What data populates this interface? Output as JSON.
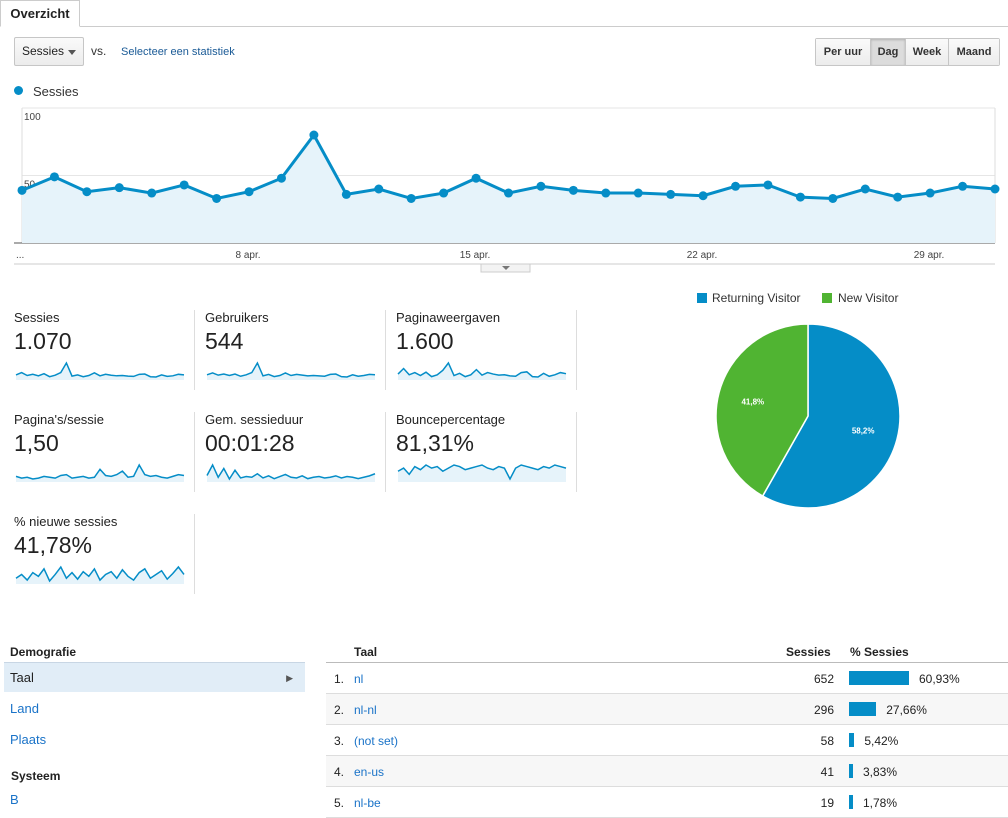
{
  "tab": {
    "label": "Overzicht"
  },
  "controls": {
    "metric_select": "Sessies",
    "vs_label": "vs.",
    "select_stat_link": "Selecteer een statistiek",
    "granularity": [
      "Per uur",
      "Dag",
      "Week",
      "Maand"
    ],
    "granularity_active": "Dag"
  },
  "chart_data": [
    {
      "type": "area",
      "series": [
        {
          "name": "Sessies",
          "color": "#058dc7",
          "values": [
            39,
            49,
            38,
            41,
            37,
            43,
            33,
            38,
            48,
            80,
            36,
            40,
            33,
            37,
            48,
            37,
            42,
            39,
            37,
            37,
            36,
            35,
            42,
            43,
            34,
            33,
            40,
            34,
            37,
            42,
            40
          ]
        }
      ],
      "ylim": [
        0,
        100
      ],
      "yticks": [
        100,
        50
      ],
      "x_tick_labels": [
        "...",
        "8 apr.",
        "15 apr.",
        "22 apr.",
        "29 apr."
      ],
      "grid": true
    },
    {
      "type": "pie",
      "slices": [
        {
          "label": "Returning Visitor",
          "value": 58.2,
          "display": "58,2%",
          "color": "#058dc7"
        },
        {
          "label": "New Visitor",
          "value": 41.8,
          "display": "41,8%",
          "color": "#50b432"
        }
      ],
      "legend": "top"
    }
  ],
  "scorecards": [
    {
      "label": "Sessies",
      "value": "1.070",
      "spark": [
        40,
        48,
        38,
        42,
        37,
        44,
        34,
        39,
        48,
        80,
        36,
        40,
        34,
        38,
        47,
        37,
        42,
        39,
        37,
        38,
        36,
        35,
        42,
        43,
        34,
        33,
        40,
        35,
        37,
        42,
        40
      ]
    },
    {
      "label": "Gebruikers",
      "value": "544",
      "spark": [
        40,
        45,
        39,
        42,
        38,
        42,
        36,
        40,
        46,
        72,
        37,
        41,
        35,
        38,
        45,
        38,
        41,
        39,
        37,
        38,
        37,
        36,
        41,
        42,
        35,
        34,
        40,
        36,
        38,
        41,
        40
      ]
    },
    {
      "label": "Paginaweergaven",
      "value": "1.600",
      "spark": [
        40,
        55,
        38,
        44,
        36,
        45,
        33,
        38,
        50,
        70,
        36,
        42,
        33,
        38,
        52,
        37,
        44,
        40,
        37,
        38,
        35,
        34,
        44,
        46,
        33,
        32,
        42,
        34,
        38,
        44,
        41
      ]
    },
    {
      "label": "Pagina's/sessie",
      "value": "1,50",
      "spark": [
        42,
        40,
        41,
        39,
        40,
        42,
        41,
        40,
        43,
        44,
        40,
        41,
        42,
        40,
        41,
        50,
        43,
        42,
        44,
        48,
        41,
        42,
        55,
        44,
        42,
        43,
        41,
        40,
        42,
        44,
        43
      ]
    },
    {
      "label": "Gem. sessieduur",
      "value": "00:01:28",
      "spark": [
        45,
        75,
        40,
        65,
        35,
        60,
        38,
        42,
        40,
        50,
        38,
        44,
        36,
        42,
        48,
        40,
        38,
        44,
        36,
        40,
        42,
        38,
        40,
        44,
        38,
        42,
        40,
        36,
        40,
        44,
        50
      ]
    },
    {
      "label": "Bouncepercentage",
      "value": "81,31%",
      "spark": [
        60,
        62,
        58,
        63,
        61,
        64,
        62,
        63,
        60,
        62,
        64,
        63,
        61,
        62,
        63,
        64,
        62,
        61,
        63,
        62,
        55,
        62,
        64,
        63,
        62,
        61,
        63,
        62,
        64,
        63,
        62
      ]
    },
    {
      "label": "% nieuwe sessies",
      "value": "41,78%",
      "spark": [
        48,
        52,
        46,
        54,
        50,
        58,
        45,
        52,
        60,
        48,
        54,
        47,
        55,
        50,
        58,
        46,
        52,
        55,
        48,
        57,
        50,
        46,
        54,
        58,
        48,
        52,
        56,
        47,
        53,
        60,
        52
      ]
    }
  ],
  "demography": {
    "section_demografie": "Demografie",
    "items": [
      "Taal",
      "Land",
      "Plaats"
    ],
    "active": "Taal",
    "section_systeem": "Systeem",
    "next_item": "B"
  },
  "table": {
    "headers": {
      "dimension": "Taal",
      "sessions": "Sessies",
      "pct": "% Sessies"
    },
    "rows": [
      {
        "rank": "1.",
        "dim": "nl",
        "sessions": "652",
        "pct_label": "60,93%",
        "pct": 60.93
      },
      {
        "rank": "2.",
        "dim": "nl-nl",
        "sessions": "296",
        "pct_label": "27,66%",
        "pct": 27.66
      },
      {
        "rank": "3.",
        "dim": "(not set)",
        "sessions": "58",
        "pct_label": "5,42%",
        "pct": 5.42
      },
      {
        "rank": "4.",
        "dim": "en-us",
        "sessions": "41",
        "pct_label": "3,83%",
        "pct": 3.83
      },
      {
        "rank": "5.",
        "dim": "nl-be",
        "sessions": "19",
        "pct_label": "1,78%",
        "pct": 1.78
      }
    ]
  }
}
